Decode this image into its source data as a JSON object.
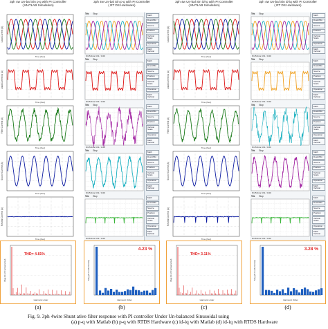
{
  "columns": [
    {
      "key": "a",
      "header_line1": "3ph 4w Un-bal Sin p-q with PI Controller",
      "header_line2": "( MATLAB Simulation)",
      "label": "(a)",
      "type": "matlab",
      "panels": [
        {
          "ylabel": "Load Current (A)",
          "color": "#555"
        },
        {
          "ylabel": "Load Current ia (A)",
          "color": "#d11"
        },
        {
          "ylabel": "Filter Current (A)",
          "color": "#1a7a1a"
        },
        {
          "ylabel": "Source Current (A)",
          "color": "#0a1aa0"
        },
        {
          "ylabel": "Neutral Current (A)",
          "color": "#0a1aa0"
        }
      ],
      "harmonic": {
        "thd": "THD= 4.81%",
        "xlabel": "Harmonic order",
        "ylabel": "Mag (% of Fundamental)"
      }
    },
    {
      "key": "b",
      "header_line1": "3ph 4w Un-bal Sin p-q with PI Controller",
      "header_line2": "( RT DS Hardware)",
      "label": "(b)",
      "type": "scope",
      "panels": [
        {
          "color": "#555"
        },
        {
          "color": "#d11"
        },
        {
          "color": "#a020a0"
        },
        {
          "color": "#1ab0c0"
        },
        {
          "color": "#3ab53a"
        }
      ],
      "harmonic": {
        "thd": "4.23 %",
        "xlabel": "Harmonic Order",
        "ylabel": "Mag (% Fundamental)"
      }
    },
    {
      "key": "c",
      "header_line1": "3ph 4w Un-bal Sin id-iq with PI Controller",
      "header_line2": "( MATLAB Simulation)",
      "label": "(c)",
      "type": "matlab",
      "panels": [
        {
          "ylabel": "Load Current (A)",
          "color": "#555"
        },
        {
          "ylabel": "Load Current ia (A)",
          "color": "#d11"
        },
        {
          "ylabel": "Filter Current (A)",
          "color": "#1a7a1a"
        },
        {
          "ylabel": "Source Current (A)",
          "color": "#0a1aa0"
        },
        {
          "ylabel": "Neutral Current (A)",
          "color": "#0a1aa0"
        }
      ],
      "harmonic": {
        "thd": "THD= 3.11%",
        "xlabel": "Harmonic order",
        "ylabel": "Mag (% of Fundamental)"
      }
    },
    {
      "key": "d",
      "header_line1": "3ph 4w Un-bal Sin id-iq with PI Controller",
      "header_line2": "( RT DS Hardware)",
      "label": "(d)",
      "type": "scope",
      "panels": [
        {
          "color": "#555"
        },
        {
          "color": "#f0a020"
        },
        {
          "color": "#1ab0c0"
        },
        {
          "color": "#a020a0"
        },
        {
          "color": "#3ab53a"
        }
      ],
      "harmonic": {
        "thd": "3.28 %",
        "xlabel": "Harmonic Order",
        "ylabel": "Mag (% Fundamental)"
      }
    }
  ],
  "scope_ui": {
    "tek": "Tek",
    "stop": "Stop",
    "menu_items": [
      "Math",
      "Dual Wfm",
      "Source",
      "Position",
      "Vertical Scale",
      "Operation",
      "Math Vertical"
    ],
    "footer": "M 25.0ms  Ch1 / 0.00"
  },
  "caption": {
    "line1": "Fig. 9.        3ph 4wire Shunt ative filter response with PI controller Under Un-balanced Sinusoidal using",
    "line2": "(a) p-q with Matlab  (b) p-q with RTDS Hardware  (c) id-iq with Matlab  (d) id-iq with RTDS Hardware"
  },
  "colors": {
    "accent_border": "#f1a23b",
    "thd_red": "#e02020",
    "bar_blue": "#1f5fbf"
  }
}
